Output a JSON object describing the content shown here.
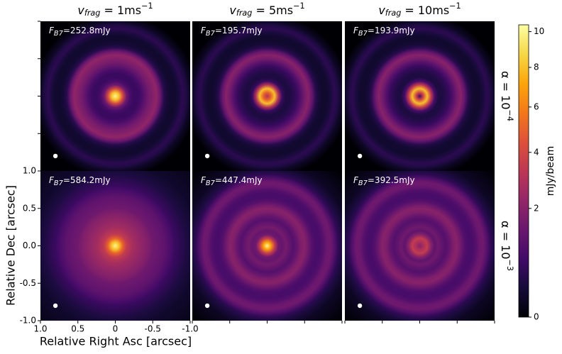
{
  "chart_data": {
    "type": "image-grid",
    "xlabel": "Relative Right Asc [arcsec]",
    "ylabel": "Relative Dec [arcsec]",
    "xlim": [
      1,
      -1
    ],
    "ylim": [
      -1,
      1
    ],
    "xticks": [
      {
        "value": 1,
        "label": "1.0"
      },
      0.5,
      0,
      -0.5,
      {
        "value": -1,
        "label": "-1.0"
      }
    ],
    "yticks": [
      {
        "value": -1,
        "label": "-1.0"
      },
      -0.5,
      {
        "value": 0,
        "label": "0.0"
      },
      0.5,
      {
        "value": 1,
        "label": "1.0"
      }
    ],
    "columns": [
      {
        "symbol": "v",
        "subscript": "frag",
        "text": " = 1ms",
        "superscript": "−1"
      },
      {
        "symbol": "v",
        "subscript": "frag",
        "text": " = 5ms",
        "superscript": "−1"
      },
      {
        "symbol": "v",
        "subscript": "frag",
        "text": " = 10ms",
        "superscript": "−1"
      }
    ],
    "rows": [
      {
        "text": "α = 10",
        "superscript": "−4"
      },
      {
        "text": "α = 10",
        "superscript": "−3"
      }
    ],
    "radius": [
      0,
      0.05,
      0.1,
      0.15,
      0.2,
      0.25,
      0.3,
      0.35,
      0.4,
      0.45,
      0.5,
      0.55,
      0.6,
      0.65,
      0.7,
      0.75,
      0.8,
      0.85,
      0.9,
      0.95,
      1.0,
      1.1,
      1.4
    ],
    "panels": [
      [
        {
          "flux": {
            "symbol": "F",
            "subscript": "B7",
            "text": "=252.8mJy"
          },
          "intensity": [
            10,
            8,
            4,
            1.5,
            0.8,
            0.6,
            0.6,
            0.8,
            1.2,
            1.6,
            1.9,
            2.2,
            1.4,
            0.4,
            0.2,
            0.15,
            0.15,
            0.25,
            0.45,
            0.3,
            0.1,
            0,
            0
          ]
        },
        {
          "flux": {
            "symbol": "F",
            "subscript": "B7",
            "text": "=195.7mJy"
          },
          "intensity": [
            3,
            5,
            8,
            3,
            0.6,
            0.3,
            0.3,
            0.4,
            0.6,
            1.0,
            1.6,
            2.0,
            1.3,
            0.4,
            0.2,
            0.15,
            0.15,
            0.25,
            0.45,
            0.3,
            0.1,
            0,
            0
          ]
        },
        {
          "flux": {
            "symbol": "F",
            "subscript": "B7",
            "text": "=193.9mJy"
          },
          "intensity": [
            0.8,
            4,
            8,
            3.5,
            0.8,
            0.3,
            0.3,
            0.4,
            0.6,
            1.0,
            1.6,
            2.0,
            1.3,
            0.4,
            0.2,
            0.15,
            0.15,
            0.25,
            0.45,
            0.3,
            0.1,
            0,
            0
          ]
        }
      ],
      [
        {
          "flux": {
            "symbol": "F",
            "subscript": "B7",
            "text": "=584.2mJy"
          },
          "intensity": [
            10,
            8,
            5,
            3.5,
            3,
            2.6,
            2.4,
            2.2,
            2,
            1.8,
            1.5,
            1.4,
            1.3,
            1.2,
            1.0,
            0.8,
            0.6,
            0.5,
            0.4,
            0.3,
            0.25,
            0.15,
            0.05
          ]
        },
        {
          "flux": {
            "symbol": "F",
            "subscript": "B7",
            "text": "=447.4mJy"
          },
          "intensity": [
            10,
            7,
            3.5,
            1.5,
            1.3,
            1.6,
            1.3,
            1.0,
            1.3,
            1.8,
            2.0,
            1.5,
            1.0,
            0.8,
            0.8,
            1.0,
            1.4,
            1.5,
            1.0,
            0.5,
            0.3,
            0.1,
            0
          ]
        },
        {
          "flux": {
            "symbol": "F",
            "subscript": "B7",
            "text": "=392.5mJy"
          },
          "intensity": [
            2,
            2.8,
            3.5,
            2,
            1.2,
            1.5,
            1.2,
            1.0,
            1.3,
            1.8,
            2.0,
            1.5,
            1.0,
            0.8,
            0.8,
            1.0,
            1.4,
            1.5,
            1.0,
            0.5,
            0.3,
            0.1,
            0
          ]
        }
      ]
    ],
    "colorbar": {
      "label": "mJy/beam",
      "colormap": "inferno",
      "clim": [
        0,
        10.4
      ],
      "gamma": 0.6,
      "ticks": [
        0,
        2,
        4,
        6,
        8,
        10
      ]
    }
  }
}
